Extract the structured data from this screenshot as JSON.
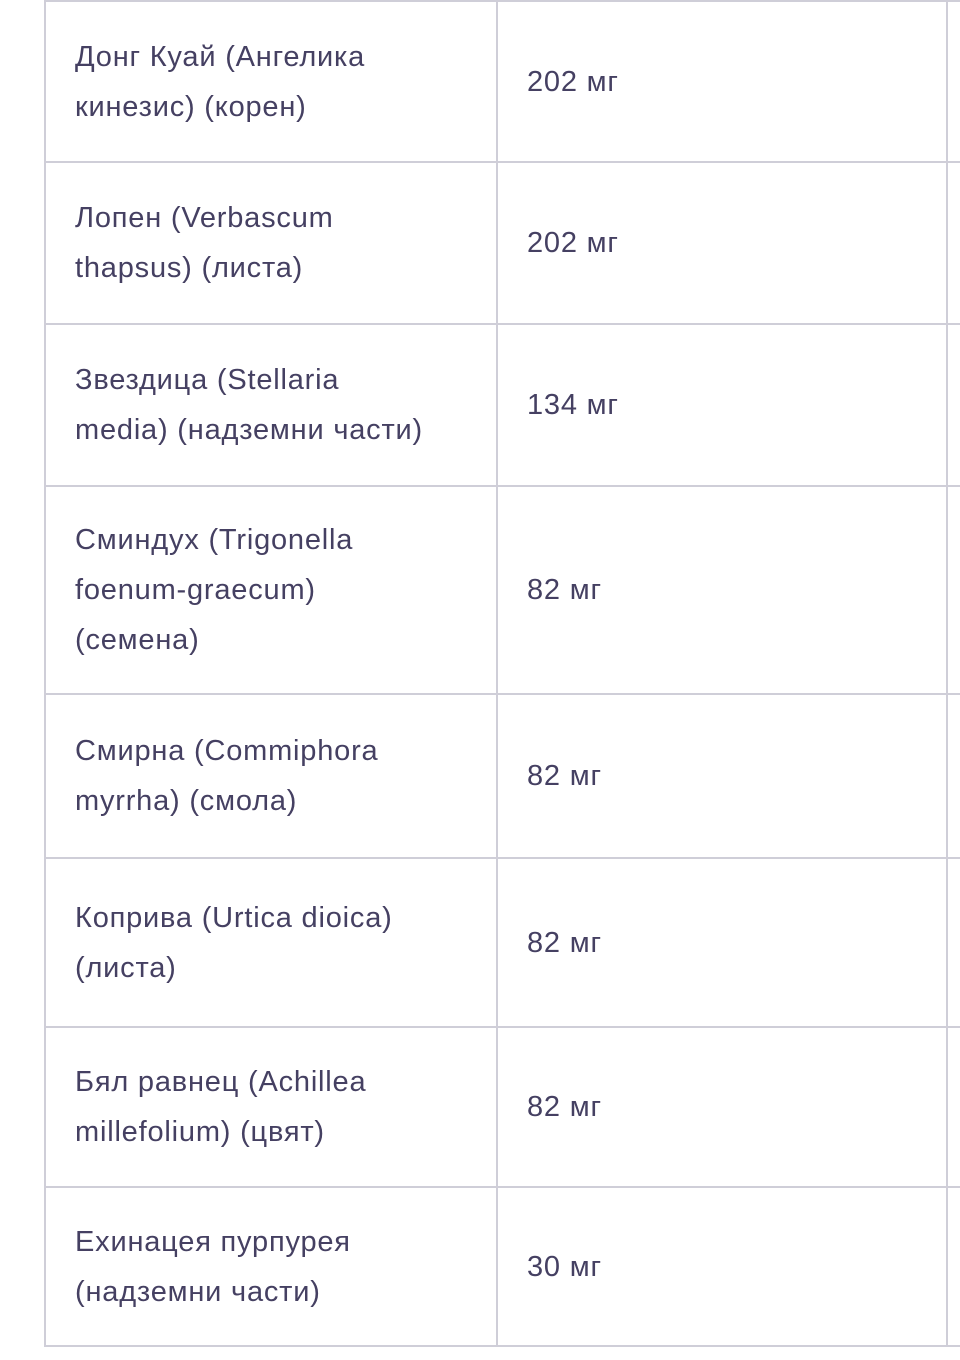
{
  "meta": {
    "description": "Supplement ingredients table (Bulgarian), cropped view",
    "unit": "мг",
    "colors": {
      "text": "#454062",
      "border": "#cfced8",
      "background": "#ffffff"
    }
  },
  "table": {
    "rows": [
      {
        "name": "Донг Куай (Ангелика\nкинезис) (корен)",
        "amount": "202 мг"
      },
      {
        "name": "Лопен (Verbascum\nthapsus) (листа)",
        "amount": "202 мг"
      },
      {
        "name": "Звездица (Stellaria\nmedia) (надземни части)",
        "amount": "134 мг"
      },
      {
        "name": "Сминдух (Trigonella\nfoenum-graecum)\n(семена)",
        "amount": "82 мг"
      },
      {
        "name": "Смирна (Commiphora\nmyrrha) (смола)",
        "amount": "82 мг"
      },
      {
        "name": "Коприва (Urtica dioica)\n(листа)",
        "amount": "82 мг"
      },
      {
        "name": "Бял равнец (Achillea\nmillefolium) (цвят)",
        "amount": "82 мг"
      },
      {
        "name": "Ехинацея пурпурея\n(надземни части)",
        "amount": "30 мг"
      }
    ]
  }
}
